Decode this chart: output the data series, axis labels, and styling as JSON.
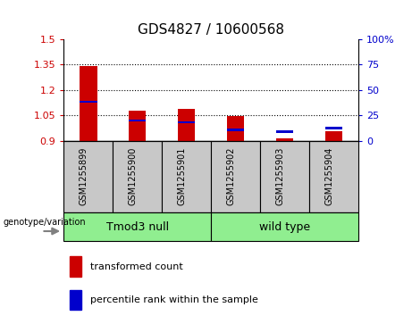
{
  "title": "GDS4827 / 10600568",
  "samples": [
    "GSM1255899",
    "GSM1255900",
    "GSM1255901",
    "GSM1255902",
    "GSM1255903",
    "GSM1255904"
  ],
  "red_values": [
    1.34,
    1.08,
    1.09,
    1.045,
    0.915,
    0.955
  ],
  "blue_values": [
    1.13,
    1.02,
    1.01,
    0.965,
    0.955,
    0.975
  ],
  "baseline": 0.9,
  "ylim_left": [
    0.9,
    1.5
  ],
  "ylim_right": [
    0,
    100
  ],
  "yticks_left": [
    0.9,
    1.05,
    1.2,
    1.35,
    1.5
  ],
  "yticks_right": [
    0,
    25,
    50,
    75,
    100
  ],
  "ytick_labels_left": [
    "0.9",
    "1.05",
    "1.2",
    "1.35",
    "1.5"
  ],
  "ytick_labels_right": [
    "0",
    "25",
    "50",
    "75",
    "100%"
  ],
  "red_color": "#CC0000",
  "blue_color": "#0000CC",
  "bar_bg_color": "#C8C8C8",
  "green_color": "#90EE90",
  "grid_lines": [
    1.05,
    1.2,
    1.35
  ],
  "label_transformed": "transformed count",
  "label_percentile": "percentile rank within the sample",
  "genotype_label": "genotype/variation",
  "group_label_1": "Tmod3 null",
  "group_label_2": "wild type",
  "title_fontsize": 11,
  "tick_fontsize": 8,
  "sample_fontsize": 7,
  "group_fontsize": 9,
  "legend_fontsize": 8
}
